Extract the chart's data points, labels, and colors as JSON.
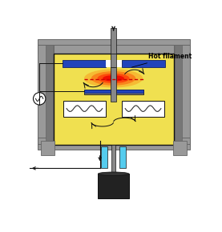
{
  "bg_color": "#ffffff",
  "chamber_color": "#f0e050",
  "frame_color": "#999999",
  "frame_dark": "#666666",
  "electrode_blue": "#2244bb",
  "plasma_orange": "#ff5500",
  "plasma_red": "#dd1100",
  "cyan_color": "#55ccee",
  "dark_gray": "#555555",
  "shaft_gray": "#888888",
  "black_color": "#111111",
  "white_color": "#ffffff",
  "dashed_red": "#cc0000",
  "hot_filament_label": "Hot filament"
}
